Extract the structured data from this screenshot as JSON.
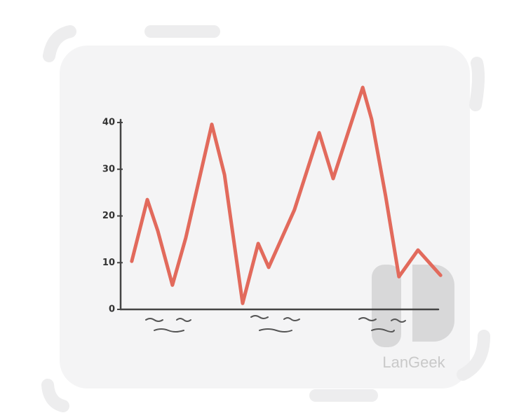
{
  "chart_data": {
    "type": "line",
    "x": [
      3.5,
      8.4,
      11.7,
      16.3,
      20.5,
      28.7,
      32.7,
      38.4,
      43.3,
      46.6,
      54.7,
      62.5,
      66.9,
      76.2,
      79,
      83.4,
      87.6,
      93.6,
      100.7
    ],
    "series": [
      {
        "color": "#e26a5c",
        "values": [
          10.3,
          23.5,
          16.8,
          5.2,
          15.3,
          39.6,
          28.8,
          1.3,
          14.1,
          9,
          21.3,
          37.8,
          28,
          47.5,
          40.7,
          24.3,
          7,
          12.7,
          7.3
        ]
      }
    ],
    "xlim": [
      0,
      100
    ],
    "ylim": [
      0,
      40
    ],
    "yticks": [
      0,
      10,
      20,
      30,
      40
    ]
  },
  "watermark": "LanGeek"
}
